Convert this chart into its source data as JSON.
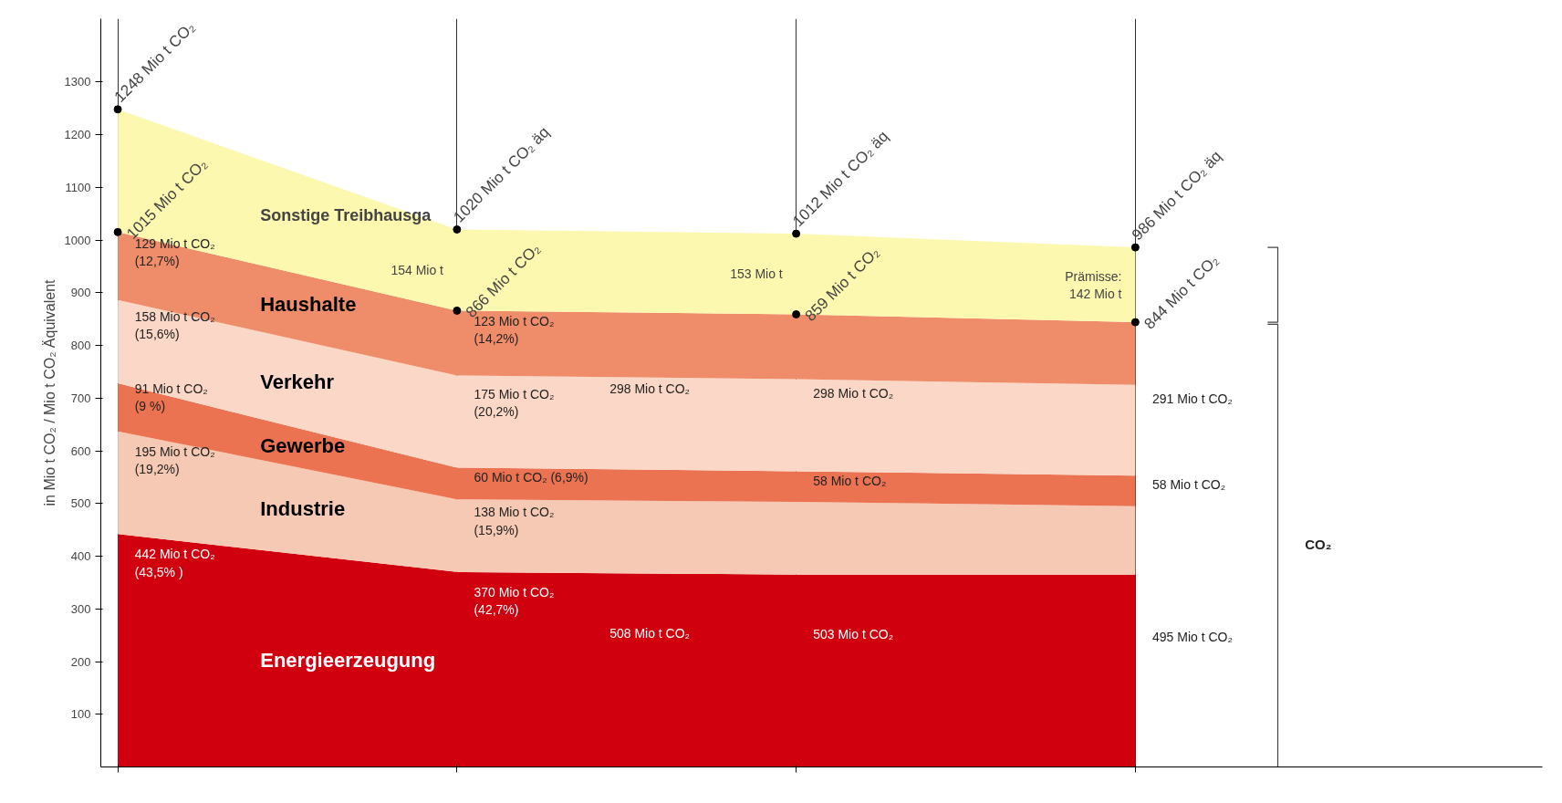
{
  "chart_data": {
    "type": "area",
    "stacked": true,
    "ylabel": "in Mio t CO₂ / Mio t CO₂ Äquivalent",
    "categories": [
      null,
      null,
      null,
      null
    ],
    "ylim": [
      0,
      1420
    ],
    "yticks": [
      100,
      200,
      300,
      400,
      500,
      600,
      700,
      800,
      900,
      1000,
      1100,
      1200,
      1300
    ],
    "tick_labels": "y",
    "grid": "x",
    "series": [
      {
        "name": "Energieerzeugung",
        "color": "#d0000f",
        "values": [
          442,
          370,
          365,
          365
        ],
        "value_labels": [
          "442 Mio t CO₂\n(43,5% )",
          "370 Mio t CO₂\n(42,7%)",
          null,
          null
        ]
      },
      {
        "name": "Industrie",
        "color": "#f6c9b4",
        "values": [
          195,
          138,
          138,
          130
        ],
        "value_labels": [
          "195 Mio t CO₂\n(19,2%)",
          "138 Mio t CO₂\n(15,9%)",
          null,
          null
        ]
      },
      {
        "name": "Gewerbe",
        "color": "#ec7352",
        "values": [
          91,
          60,
          58,
          58
        ],
        "value_labels": [
          "91 Mio t CO₂\n(9 %)",
          "60 Mio t CO₂ (6,9%)",
          "58 Mio t CO₂",
          "58 Mio t CO₂"
        ]
      },
      {
        "name": "Verkehr",
        "color": "#fad7c6",
        "values": [
          158,
          175,
          175,
          172
        ],
        "value_labels": [
          "158 Mio t CO₂\n(15,6%)",
          "175 Mio t CO₂\n(20,2%)",
          null,
          null
        ]
      },
      {
        "name": "Haushalte",
        "color": "#ef8d6a",
        "values": [
          129,
          123,
          123,
          119
        ],
        "value_labels": [
          "129 Mio t CO₂\n(12,7%)",
          "123 Mio t CO₂\n(14,2%)",
          null,
          null
        ]
      },
      {
        "name": "Sonstige Treibhausga",
        "color": "#fdf8b0",
        "values": [
          233,
          154,
          153,
          142
        ],
        "value_labels": [
          null,
          "154 Mio t",
          "153 Mio t",
          "Prämisse:\n142 Mio t"
        ]
      }
    ],
    "totals": [
      "1248 Mio t CO₂",
      "1020 Mio t CO₂ äq",
      "1012 Mio t CO₂ äq",
      "986 Mio t CO₂ äq"
    ],
    "annotations": [
      "1015 Mio t CO₂",
      "866 Mio t CO₂",
      "859 Mio t CO₂",
      "844 Mio t CO₂",
      "298 Mio t CO₂",
      "298 Mio t CO₂",
      "291 Mio t CO₂",
      "508 Mio t CO₂",
      "503 Mio t CO₂",
      "495 Mio t CO₂",
      "CO₂"
    ]
  }
}
